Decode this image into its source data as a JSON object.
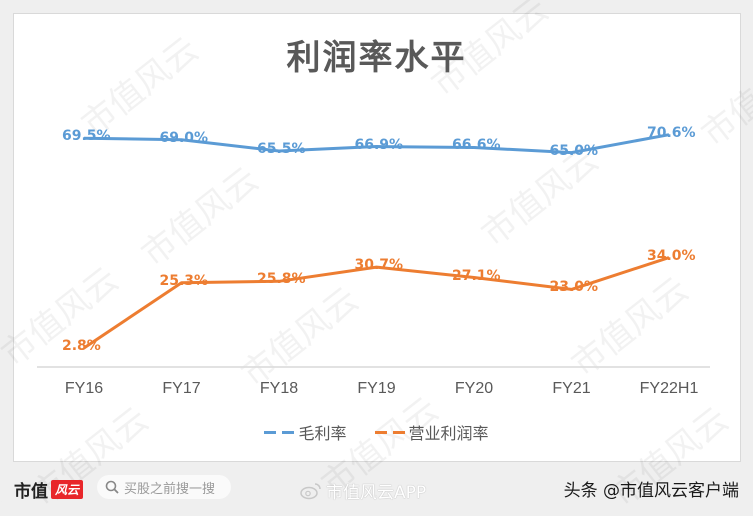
{
  "chart_data": {
    "type": "line",
    "title": "利润率水平",
    "xlabel": "",
    "ylabel": "",
    "categories": [
      "FY16",
      "FY17",
      "FY18",
      "FY19",
      "FY20",
      "FY21",
      "FY22H1"
    ],
    "series": [
      {
        "name": "毛利率",
        "color": "#5b9bd5",
        "values": [
          69.5,
          69.0,
          65.5,
          66.9,
          66.6,
          65.0,
          70.6
        ],
        "labels": [
          "69.5%",
          "69.0%",
          "65.5%",
          "66.9%",
          "66.6%",
          "65.0%",
          "70.6%"
        ]
      },
      {
        "name": "营业利润率",
        "color": "#ed7d31",
        "values": [
          2.8,
          25.3,
          25.8,
          30.7,
          27.1,
          23.0,
          34.0
        ],
        "labels": [
          "2.8%",
          "25.3%",
          "25.8%",
          "30.7%",
          "27.1%",
          "23.0%",
          "34.0%"
        ]
      }
    ],
    "grid": false,
    "legend_position": "bottom",
    "data_labels": true
  },
  "footer": {
    "brand_text": "市值",
    "brand_badge": "风云",
    "search_placeholder": "买股之前搜一搜",
    "weibo_text": "市值风云APP",
    "credit": "头条 @市值风云客户端"
  },
  "watermark": "市值风云"
}
